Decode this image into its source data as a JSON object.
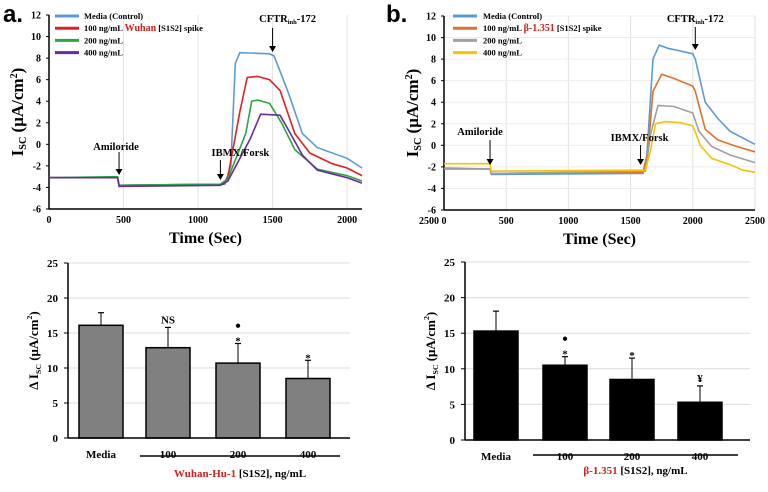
{
  "chart_data": [
    {
      "panel": "a.",
      "type": "line",
      "xlabel": "Time (Sec)",
      "ylabel": {
        "main": "I",
        "sub": "SC",
        "unit": " (μA/cm",
        "sup": "2",
        "close": ")"
      },
      "xlim": [
        0,
        2100
      ],
      "ylim": [
        -6,
        12
      ],
      "xticks": [
        0,
        500,
        1000,
        1500,
        2000
      ],
      "yticks": [
        -6,
        -4,
        -2,
        0,
        2,
        4,
        6,
        8,
        10,
        12
      ],
      "grid": "vertical",
      "legend_position": "top-left",
      "legend": [
        {
          "pre": "Media (Control)",
          "hl": "",
          "post": ""
        },
        {
          "pre": "100 ng/mL ",
          "hl": "Wuhan",
          "post": " [S1S2] spike"
        },
        {
          "pre": "200 ng/mL",
          "hl": "",
          "post": ""
        },
        {
          "pre": "400 ng/mL",
          "hl": "",
          "post": ""
        }
      ],
      "annotations": [
        {
          "text": "Amiloride",
          "x": 470
        },
        {
          "text": "IBMX/Forsk",
          "x": 1150
        },
        {
          "text": "CFTR",
          "sub": "inh",
          "post": "-172",
          "x": 1500
        }
      ],
      "series": [
        {
          "color": "#5b9bd5",
          "points": [
            [
              0,
              -3.1
            ],
            [
              460,
              -3.1
            ],
            [
              470,
              -3.8
            ],
            [
              1180,
              -3.7
            ],
            [
              1220,
              -2
            ],
            [
              1250,
              7.5
            ],
            [
              1280,
              8.5
            ],
            [
              1480,
              8.4
            ],
            [
              1510,
              8.2
            ],
            [
              1600,
              5
            ],
            [
              1700,
              1
            ],
            [
              1800,
              -0.3
            ],
            [
              2000,
              -1.3
            ],
            [
              2100,
              -2.2
            ]
          ]
        },
        {
          "color": "#e02020",
          "points": [
            [
              0,
              -3.1
            ],
            [
              460,
              -3.1
            ],
            [
              470,
              -3.8
            ],
            [
              1170,
              -3.7
            ],
            [
              1200,
              -3
            ],
            [
              1280,
              3
            ],
            [
              1330,
              6.2
            ],
            [
              1400,
              6.3
            ],
            [
              1480,
              6
            ],
            [
              1550,
              5
            ],
            [
              1650,
              1
            ],
            [
              1750,
              -0.8
            ],
            [
              1900,
              -1.8
            ],
            [
              2000,
              -2.2
            ],
            [
              2100,
              -2.9
            ]
          ]
        },
        {
          "color": "#28a745",
          "points": [
            [
              0,
              -3.1
            ],
            [
              460,
              -3
            ],
            [
              470,
              -3.8
            ],
            [
              1150,
              -3.7
            ],
            [
              1200,
              -3.2
            ],
            [
              1320,
              1
            ],
            [
              1360,
              4
            ],
            [
              1400,
              4.1
            ],
            [
              1480,
              3.8
            ],
            [
              1560,
              2
            ],
            [
              1650,
              -0.5
            ],
            [
              1800,
              -2.3
            ],
            [
              2000,
              -2.9
            ],
            [
              2100,
              -3.4
            ]
          ]
        },
        {
          "color": "#6a2c9a",
          "points": [
            [
              0,
              -3.1
            ],
            [
              460,
              -3.1
            ],
            [
              470,
              -3.9
            ],
            [
              1150,
              -3.8
            ],
            [
              1200,
              -3.4
            ],
            [
              1350,
              0.5
            ],
            [
              1420,
              2.8
            ],
            [
              1550,
              2.7
            ],
            [
              1620,
              1
            ],
            [
              1700,
              -1
            ],
            [
              1800,
              -2.4
            ],
            [
              2000,
              -3.1
            ],
            [
              2100,
              -3.6
            ]
          ]
        }
      ]
    },
    {
      "panel": "b.",
      "type": "line",
      "xlabel": "Time (Sec)",
      "ylabel": {
        "main": "I",
        "sub": "SC",
        "unit": " (μA/cm",
        "sup": "2",
        "close": ")"
      },
      "xlim": [
        0,
        2500
      ],
      "ylim": [
        -6,
        12
      ],
      "xticks": [
        0,
        500,
        1000,
        1500,
        2000,
        2500
      ],
      "extra_tick_label": "2500",
      "yticks": [
        -6,
        -4,
        -2,
        0,
        2,
        4,
        6,
        8,
        10,
        12
      ],
      "grid": "both",
      "legend_position": "top-left",
      "legend": [
        {
          "pre": "Media (Control)",
          "hl": "",
          "post": ""
        },
        {
          "pre": "100 ng/mL ",
          "hl": "β-1.351",
          "post": " [S1S2] spike"
        },
        {
          "pre": "200 ng/mL",
          "hl": "",
          "post": ""
        },
        {
          "pre": "400 ng/mL",
          "hl": "",
          "post": ""
        }
      ],
      "annotations": [
        {
          "text": "Amiloride",
          "x": 370
        },
        {
          "text": "IBMX/Forsk",
          "x": 1580
        },
        {
          "text": "CFTR",
          "sub": "inh",
          "post": "-172",
          "x": 2020
        }
      ],
      "series": [
        {
          "color": "#5b9bd5",
          "points": [
            [
              0,
              -2.1
            ],
            [
              370,
              -2.2
            ],
            [
              380,
              -2.7
            ],
            [
              1600,
              -2.6
            ],
            [
              1630,
              -1
            ],
            [
              1680,
              8
            ],
            [
              1730,
              9.3
            ],
            [
              1800,
              9
            ],
            [
              2000,
              8.5
            ],
            [
              2020,
              8
            ],
            [
              2100,
              4
            ],
            [
              2200,
              2.5
            ],
            [
              2300,
              1.3
            ],
            [
              2500,
              0.1
            ]
          ]
        },
        {
          "color": "#e07030",
          "points": [
            [
              0,
              -2.2
            ],
            [
              370,
              -2.2
            ],
            [
              380,
              -2.6
            ],
            [
              1600,
              -2.5
            ],
            [
              1640,
              -0.5
            ],
            [
              1680,
              5
            ],
            [
              1750,
              6.6
            ],
            [
              1850,
              6.2
            ],
            [
              2000,
              5.5
            ],
            [
              2020,
              5
            ],
            [
              2100,
              1.5
            ],
            [
              2200,
              0.5
            ],
            [
              2350,
              -0.1
            ],
            [
              2500,
              -0.6
            ]
          ]
        },
        {
          "color": "#a0a0a0",
          "points": [
            [
              0,
              -2.2
            ],
            [
              370,
              -2.2
            ],
            [
              380,
              -2.6
            ],
            [
              1620,
              -2.4
            ],
            [
              1660,
              1
            ],
            [
              1720,
              3.7
            ],
            [
              1850,
              3.6
            ],
            [
              2000,
              3
            ],
            [
              2050,
              1.3
            ],
            [
              2150,
              -0.1
            ],
            [
              2300,
              -0.9
            ],
            [
              2500,
              -1.6
            ]
          ]
        },
        {
          "color": "#f5c400",
          "points": [
            [
              0,
              -1.7
            ],
            [
              370,
              -1.7
            ],
            [
              380,
              -2.4
            ],
            [
              1620,
              -2.3
            ],
            [
              1660,
              -0.5
            ],
            [
              1700,
              2
            ],
            [
              1780,
              2.2
            ],
            [
              1900,
              2.1
            ],
            [
              2000,
              1.8
            ],
            [
              2060,
              0
            ],
            [
              2150,
              -1.2
            ],
            [
              2300,
              -1.8
            ],
            [
              2400,
              -2.3
            ],
            [
              2500,
              -2.5
            ]
          ]
        }
      ]
    },
    {
      "type": "bar",
      "ylabel": {
        "main": "Δ I",
        "sub": "SC",
        "unit": " (μA/cm",
        "sup": "2",
        "close": ")"
      },
      "ylim": [
        0,
        25
      ],
      "yticks": [
        0,
        5,
        10,
        15,
        20,
        25
      ],
      "grid": "horizontal",
      "bar_color": "#808080",
      "categories": [
        "Media",
        "100",
        "200",
        "400"
      ],
      "values": [
        16.1,
        12.9,
        10.7,
        8.5
      ],
      "errors": [
        1.8,
        2.9,
        2.8,
        2.6
      ],
      "marks": [
        [],
        [
          "NS"
        ],
        [
          "●",
          "*"
        ],
        [
          "*"
        ]
      ],
      "group_label": {
        "hl": "Wuhan-Hu-1",
        "post": " [S1S2], ng/mL"
      }
    },
    {
      "type": "bar",
      "ylabel": {
        "main": "Δ I",
        "sub": "SC",
        "unit": " (μA/cm",
        "sup": "2",
        "close": ")"
      },
      "ylim": [
        0,
        25
      ],
      "yticks": [
        0,
        5,
        10,
        15,
        20,
        25
      ],
      "grid": "horizontal",
      "bar_color": "#000000",
      "categories": [
        "Media",
        "100",
        "200",
        "400"
      ],
      "values": [
        15.3,
        10.5,
        8.5,
        5.3
      ],
      "errors": [
        2.8,
        1.2,
        3.0,
        2.3
      ],
      "marks": [
        [],
        [
          "●",
          "*"
        ],
        [
          "*"
        ],
        [
          "¥"
        ]
      ],
      "group_label": {
        "hl": "β-1.351",
        "post": " [S1S2], ng/mL"
      }
    }
  ],
  "highlight_color": "#d42020"
}
